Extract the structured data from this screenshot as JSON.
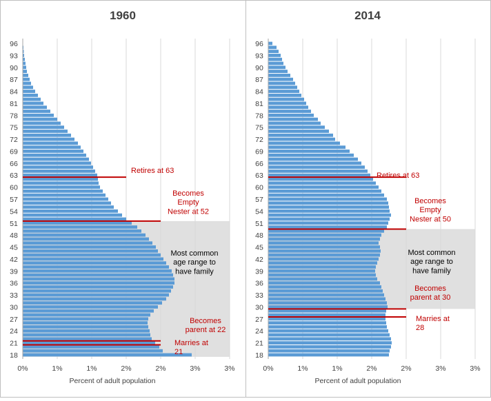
{
  "colors": {
    "bar": "#5b9bd5",
    "marker": "#c00000",
    "annotation_text": "#c00000",
    "shade": "#e0e0e0",
    "gridline": "#d9d9d9",
    "panel_border": "#bfbfbf"
  },
  "chart_data": [
    {
      "type": "bar",
      "orientation": "horizontal",
      "title": "1960",
      "xlabel": "Percent of adult population",
      "ylabel": "",
      "xlim": [
        0,
        3
      ],
      "x_ticks": [
        0,
        1,
        2,
        3
      ],
      "x_tick_labels": [
        "0%",
        "1%",
        "1%",
        "2%",
        "2%",
        "3%",
        "3%"
      ],
      "x_tick_label_values": [
        0,
        0.5,
        1,
        1.5,
        2,
        2.5,
        3
      ],
      "y_tick_labels": [
        "18",
        "21",
        "24",
        "27",
        "30",
        "33",
        "36",
        "39",
        "42",
        "45",
        "48",
        "51",
        "54",
        "57",
        "60",
        "63",
        "66",
        "69",
        "72",
        "75",
        "78",
        "81",
        "84",
        "87",
        "90",
        "93",
        "96"
      ],
      "grid": true,
      "legend": "none",
      "categories": [
        18,
        19,
        20,
        21,
        22,
        23,
        24,
        25,
        26,
        27,
        28,
        29,
        30,
        31,
        32,
        33,
        34,
        35,
        36,
        37,
        38,
        39,
        40,
        41,
        42,
        43,
        44,
        45,
        46,
        47,
        48,
        49,
        50,
        51,
        52,
        53,
        54,
        55,
        56,
        57,
        58,
        59,
        60,
        61,
        62,
        63,
        64,
        65,
        66,
        67,
        68,
        69,
        70,
        71,
        72,
        73,
        74,
        75,
        76,
        77,
        78,
        79,
        80,
        81,
        82,
        83,
        84,
        85,
        86,
        87,
        88,
        89,
        90,
        91,
        92,
        93,
        94,
        95,
        96
      ],
      "values": [
        2.45,
        2.03,
        1.98,
        1.92,
        1.87,
        1.85,
        1.84,
        1.82,
        1.81,
        1.82,
        1.85,
        1.9,
        1.96,
        2.02,
        2.08,
        2.12,
        2.15,
        2.18,
        2.2,
        2.2,
        2.18,
        2.16,
        2.12,
        2.08,
        2.04,
        2.0,
        1.96,
        1.93,
        1.88,
        1.83,
        1.78,
        1.72,
        1.66,
        1.58,
        1.5,
        1.44,
        1.38,
        1.32,
        1.28,
        1.24,
        1.2,
        1.16,
        1.12,
        1.1,
        1.09,
        1.08,
        1.05,
        1.02,
        0.99,
        0.96,
        0.92,
        0.88,
        0.84,
        0.8,
        0.75,
        0.7,
        0.65,
        0.6,
        0.55,
        0.5,
        0.45,
        0.4,
        0.35,
        0.3,
        0.26,
        0.22,
        0.18,
        0.15,
        0.12,
        0.1,
        0.08,
        0.06,
        0.05,
        0.04,
        0.03,
        0.02,
        0.015,
        0.01,
        0.005
      ],
      "shaded_age_range": [
        18,
        51
      ],
      "markers": [
        {
          "age": 63,
          "label": "Retires at 63"
        },
        {
          "age": 52,
          "label": "Becomes Empty Nester at 52"
        },
        {
          "age": 22,
          "label": "Becomes parent at 22"
        },
        {
          "age": 21,
          "label": "Marries at 21"
        }
      ],
      "annotations": {
        "retires_lines": [
          "Retires at 63"
        ],
        "empty_nester_lines": [
          "Becomes",
          "Empty",
          "Nester at 52"
        ],
        "parent_lines": [
          "Becomes",
          "parent at 22"
        ],
        "marries_lines": [
          "Marries at",
          "21"
        ],
        "family_lines": [
          "Most common",
          "age range to",
          "have family"
        ]
      }
    },
    {
      "type": "bar",
      "orientation": "horizontal",
      "title": "2014",
      "xlabel": "Percent of adult population",
      "ylabel": "",
      "xlim": [
        0,
        3
      ],
      "x_ticks": [
        0,
        1,
        2,
        3
      ],
      "x_tick_labels": [
        "0%",
        "1%",
        "1%",
        "2%",
        "2%",
        "3%",
        "3%"
      ],
      "x_tick_label_values": [
        0,
        0.5,
        1,
        1.5,
        2,
        2.5,
        3
      ],
      "y_tick_labels": [
        "18",
        "21",
        "24",
        "27",
        "30",
        "33",
        "36",
        "39",
        "42",
        "45",
        "48",
        "51",
        "54",
        "57",
        "60",
        "63",
        "66",
        "69",
        "72",
        "75",
        "78",
        "81",
        "84",
        "87",
        "90",
        "93",
        "96"
      ],
      "grid": true,
      "legend": "none",
      "categories": [
        18,
        19,
        20,
        21,
        22,
        23,
        24,
        25,
        26,
        27,
        28,
        29,
        30,
        31,
        32,
        33,
        34,
        35,
        36,
        37,
        38,
        39,
        40,
        41,
        42,
        43,
        44,
        45,
        46,
        47,
        48,
        49,
        50,
        51,
        52,
        53,
        54,
        55,
        56,
        57,
        58,
        59,
        60,
        61,
        62,
        63,
        64,
        65,
        66,
        67,
        68,
        69,
        70,
        71,
        72,
        73,
        74,
        75,
        76,
        77,
        78,
        79,
        80,
        81,
        82,
        83,
        84,
        85,
        86,
        87,
        88,
        89,
        90,
        91,
        92,
        93,
        94,
        95,
        96
      ],
      "values": [
        1.75,
        1.76,
        1.78,
        1.79,
        1.78,
        1.76,
        1.74,
        1.72,
        1.71,
        1.7,
        1.7,
        1.71,
        1.73,
        1.72,
        1.7,
        1.68,
        1.66,
        1.64,
        1.62,
        1.58,
        1.56,
        1.55,
        1.56,
        1.58,
        1.6,
        1.62,
        1.63,
        1.62,
        1.6,
        1.62,
        1.64,
        1.68,
        1.72,
        1.74,
        1.76,
        1.78,
        1.76,
        1.75,
        1.74,
        1.72,
        1.68,
        1.64,
        1.6,
        1.56,
        1.52,
        1.48,
        1.44,
        1.4,
        1.35,
        1.3,
        1.24,
        1.18,
        1.12,
        1.04,
        0.97,
        0.94,
        0.88,
        0.82,
        0.76,
        0.72,
        0.66,
        0.62,
        0.58,
        0.55,
        0.52,
        0.48,
        0.45,
        0.42,
        0.39,
        0.36,
        0.32,
        0.28,
        0.25,
        0.22,
        0.2,
        0.18,
        0.15,
        0.12,
        0.06
      ],
      "shaded_age_range": [
        30,
        49
      ],
      "markers": [
        {
          "age": 63,
          "label": "Retires at 63"
        },
        {
          "age": 50,
          "label": "Becomes Empty Nester at 50"
        },
        {
          "age": 30,
          "label": "Becomes parent at 30"
        },
        {
          "age": 28,
          "label": "Marries at 28"
        }
      ],
      "annotations": {
        "retires_lines": [
          "Retires at 63"
        ],
        "empty_nester_lines": [
          "Becomes",
          "Empty",
          "Nester at 50"
        ],
        "parent_lines": [
          "Becomes",
          "parent at 30"
        ],
        "marries_lines": [
          "Marries at",
          "28"
        ],
        "family_lines": [
          "Most common",
          "age range to",
          "have family"
        ]
      }
    }
  ]
}
